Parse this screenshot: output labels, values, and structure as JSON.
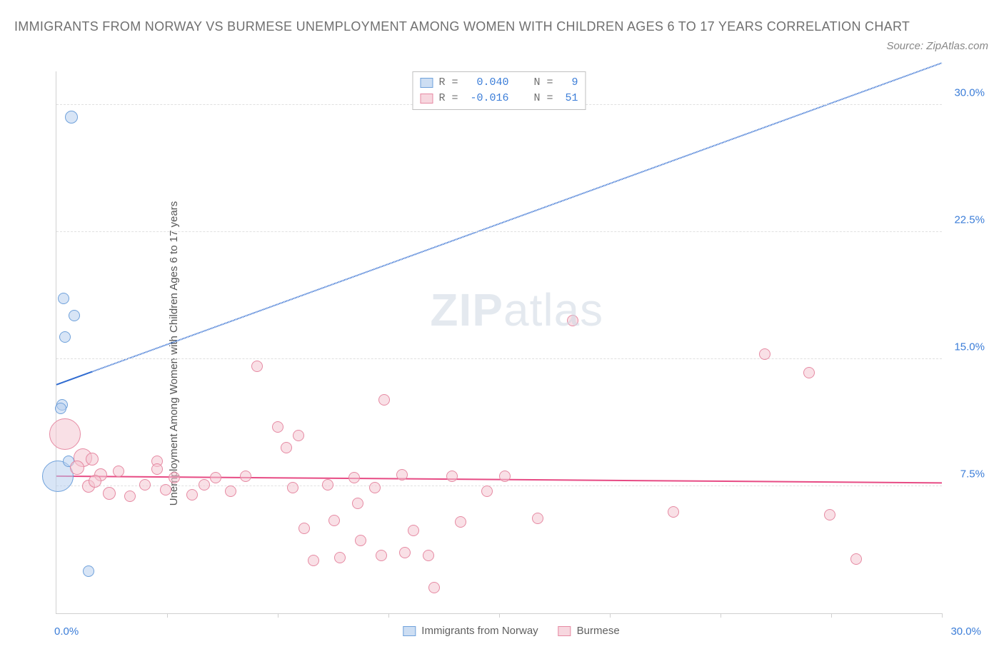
{
  "title": "IMMIGRANTS FROM NORWAY VS BURMESE UNEMPLOYMENT AMONG WOMEN WITH CHILDREN AGES 6 TO 17 YEARS CORRELATION CHART",
  "source": "Source: ZipAtlas.com",
  "ylabel": "Unemployment Among Women with Children Ages 6 to 17 years",
  "watermark_bold": "ZIP",
  "watermark_light": "atlas",
  "xlim": [
    0,
    30
  ],
  "ylim": [
    0,
    32
  ],
  "x_origin_label": "0.0%",
  "x_end_label": "30.0%",
  "x_ticks_minor": [
    3.75,
    7.5,
    11.25,
    15,
    18.75,
    22.5,
    26.25,
    30
  ],
  "y_ticks": [
    {
      "v": 7.5,
      "label": "7.5%"
    },
    {
      "v": 15.0,
      "label": "15.0%"
    },
    {
      "v": 22.5,
      "label": "22.5%"
    },
    {
      "v": 30.0,
      "label": "30.0%"
    }
  ],
  "series": [
    {
      "key": "norway",
      "label": "Immigrants from Norway",
      "fill": "#b8d0ee",
      "fill_alpha": 0.55,
      "stroke": "#6fa1db",
      "R": "0.040",
      "N": "9",
      "trend": {
        "x1": 0,
        "y1": 13.5,
        "x2": 30,
        "y2": 32.5,
        "solid_until_x": 1.2,
        "color": "#2f6bd0",
        "width": 2
      },
      "points": [
        {
          "x": 0.2,
          "y": 12.3,
          "r": 8
        },
        {
          "x": 0.15,
          "y": 12.1,
          "r": 8
        },
        {
          "x": 0.5,
          "y": 29.3,
          "r": 9
        },
        {
          "x": 0.25,
          "y": 18.6,
          "r": 8
        },
        {
          "x": 0.6,
          "y": 17.6,
          "r": 8
        },
        {
          "x": 0.3,
          "y": 16.3,
          "r": 8
        },
        {
          "x": 0.05,
          "y": 8.1,
          "r": 22
        },
        {
          "x": 1.1,
          "y": 2.5,
          "r": 8
        },
        {
          "x": 0.4,
          "y": 9.0,
          "r": 8
        }
      ]
    },
    {
      "key": "burmese",
      "label": "Burmese",
      "fill": "#f4c6d1",
      "fill_alpha": 0.55,
      "stroke": "#e68aa3",
      "R": "-0.016",
      "N": "51",
      "trend": {
        "x1": 0,
        "y1": 8.1,
        "x2": 30,
        "y2": 7.7,
        "solid_until_x": 30,
        "color": "#e74b84",
        "width": 2
      },
      "points": [
        {
          "x": 0.3,
          "y": 10.6,
          "r": 22
        },
        {
          "x": 0.9,
          "y": 9.2,
          "r": 13
        },
        {
          "x": 1.2,
          "y": 9.1,
          "r": 9
        },
        {
          "x": 0.7,
          "y": 8.6,
          "r": 10
        },
        {
          "x": 1.5,
          "y": 8.2,
          "r": 9
        },
        {
          "x": 1.1,
          "y": 7.5,
          "r": 9
        },
        {
          "x": 1.8,
          "y": 7.1,
          "r": 9
        },
        {
          "x": 1.3,
          "y": 7.8,
          "r": 9
        },
        {
          "x": 2.1,
          "y": 8.4,
          "r": 8
        },
        {
          "x": 2.5,
          "y": 6.9,
          "r": 8
        },
        {
          "x": 3.0,
          "y": 7.6,
          "r": 8
        },
        {
          "x": 3.4,
          "y": 9.0,
          "r": 8
        },
        {
          "x": 3.4,
          "y": 8.5,
          "r": 8
        },
        {
          "x": 3.7,
          "y": 7.3,
          "r": 8
        },
        {
          "x": 4.0,
          "y": 8.0,
          "r": 8
        },
        {
          "x": 4.6,
          "y": 7.0,
          "r": 8
        },
        {
          "x": 5.0,
          "y": 7.6,
          "r": 8
        },
        {
          "x": 5.4,
          "y": 8.0,
          "r": 8
        },
        {
          "x": 5.9,
          "y": 7.2,
          "r": 8
        },
        {
          "x": 6.4,
          "y": 8.1,
          "r": 8
        },
        {
          "x": 6.8,
          "y": 14.6,
          "r": 8
        },
        {
          "x": 7.5,
          "y": 11.0,
          "r": 8
        },
        {
          "x": 7.8,
          "y": 9.8,
          "r": 8
        },
        {
          "x": 8.0,
          "y": 7.4,
          "r": 8
        },
        {
          "x": 8.2,
          "y": 10.5,
          "r": 8
        },
        {
          "x": 8.4,
          "y": 5.0,
          "r": 8
        },
        {
          "x": 8.7,
          "y": 3.1,
          "r": 8
        },
        {
          "x": 9.2,
          "y": 7.6,
          "r": 8
        },
        {
          "x": 9.4,
          "y": 5.5,
          "r": 8
        },
        {
          "x": 9.6,
          "y": 3.3,
          "r": 8
        },
        {
          "x": 10.1,
          "y": 8.0,
          "r": 8
        },
        {
          "x": 10.2,
          "y": 6.5,
          "r": 8
        },
        {
          "x": 10.3,
          "y": 4.3,
          "r": 8
        },
        {
          "x": 10.8,
          "y": 7.4,
          "r": 8
        },
        {
          "x": 11.0,
          "y": 3.4,
          "r": 8
        },
        {
          "x": 11.1,
          "y": 12.6,
          "r": 8
        },
        {
          "x": 11.7,
          "y": 8.2,
          "r": 8
        },
        {
          "x": 11.8,
          "y": 3.6,
          "r": 8
        },
        {
          "x": 12.1,
          "y": 4.9,
          "r": 8
        },
        {
          "x": 12.6,
          "y": 3.4,
          "r": 8
        },
        {
          "x": 12.8,
          "y": 1.5,
          "r": 8
        },
        {
          "x": 13.4,
          "y": 8.1,
          "r": 8
        },
        {
          "x": 13.7,
          "y": 5.4,
          "r": 8
        },
        {
          "x": 14.6,
          "y": 7.2,
          "r": 8
        },
        {
          "x": 15.2,
          "y": 8.1,
          "r": 8
        },
        {
          "x": 16.3,
          "y": 5.6,
          "r": 8
        },
        {
          "x": 17.5,
          "y": 17.3,
          "r": 8
        },
        {
          "x": 20.9,
          "y": 6.0,
          "r": 8
        },
        {
          "x": 24.0,
          "y": 15.3,
          "r": 8
        },
        {
          "x": 25.5,
          "y": 14.2,
          "r": 8
        },
        {
          "x": 26.2,
          "y": 5.8,
          "r": 8
        },
        {
          "x": 27.1,
          "y": 3.2,
          "r": 8
        }
      ]
    }
  ]
}
